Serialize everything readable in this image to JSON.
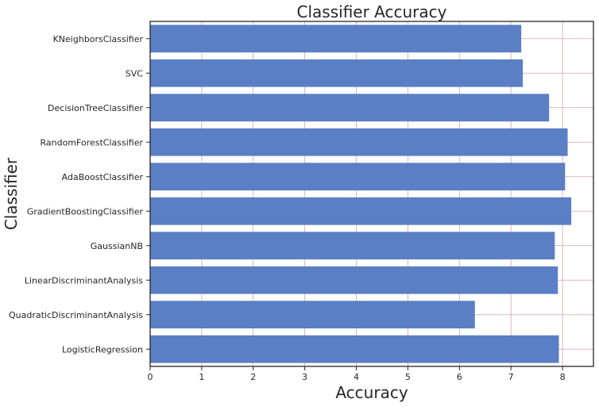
{
  "chart_data": {
    "type": "bar",
    "orientation": "horizontal",
    "title": "Classifier Accuracy",
    "xlabel": "Accuracy",
    "ylabel": "Classifier",
    "categories": [
      "KNeighborsClassifier",
      "SVC",
      "DecisionTreeClassifier",
      "RandomForestClassifier",
      "AdaBoostClassifier",
      "GradientBoostingClassifier",
      "GaussianNB",
      "LinearDiscriminantAnalysis",
      "QuadraticDiscriminantAnalysis",
      "LogisticRegression"
    ],
    "values": [
      7.2,
      7.23,
      7.74,
      8.1,
      8.05,
      8.17,
      7.85,
      7.91,
      6.3,
      7.93
    ],
    "xlim": [
      0,
      8.6
    ],
    "xticks": [
      0,
      1,
      2,
      3,
      4,
      5,
      6,
      7,
      8
    ],
    "grid": true,
    "colors": {
      "bar": "#5b7fc4",
      "grid": "#d7a0a8",
      "axis": "#262626"
    }
  }
}
